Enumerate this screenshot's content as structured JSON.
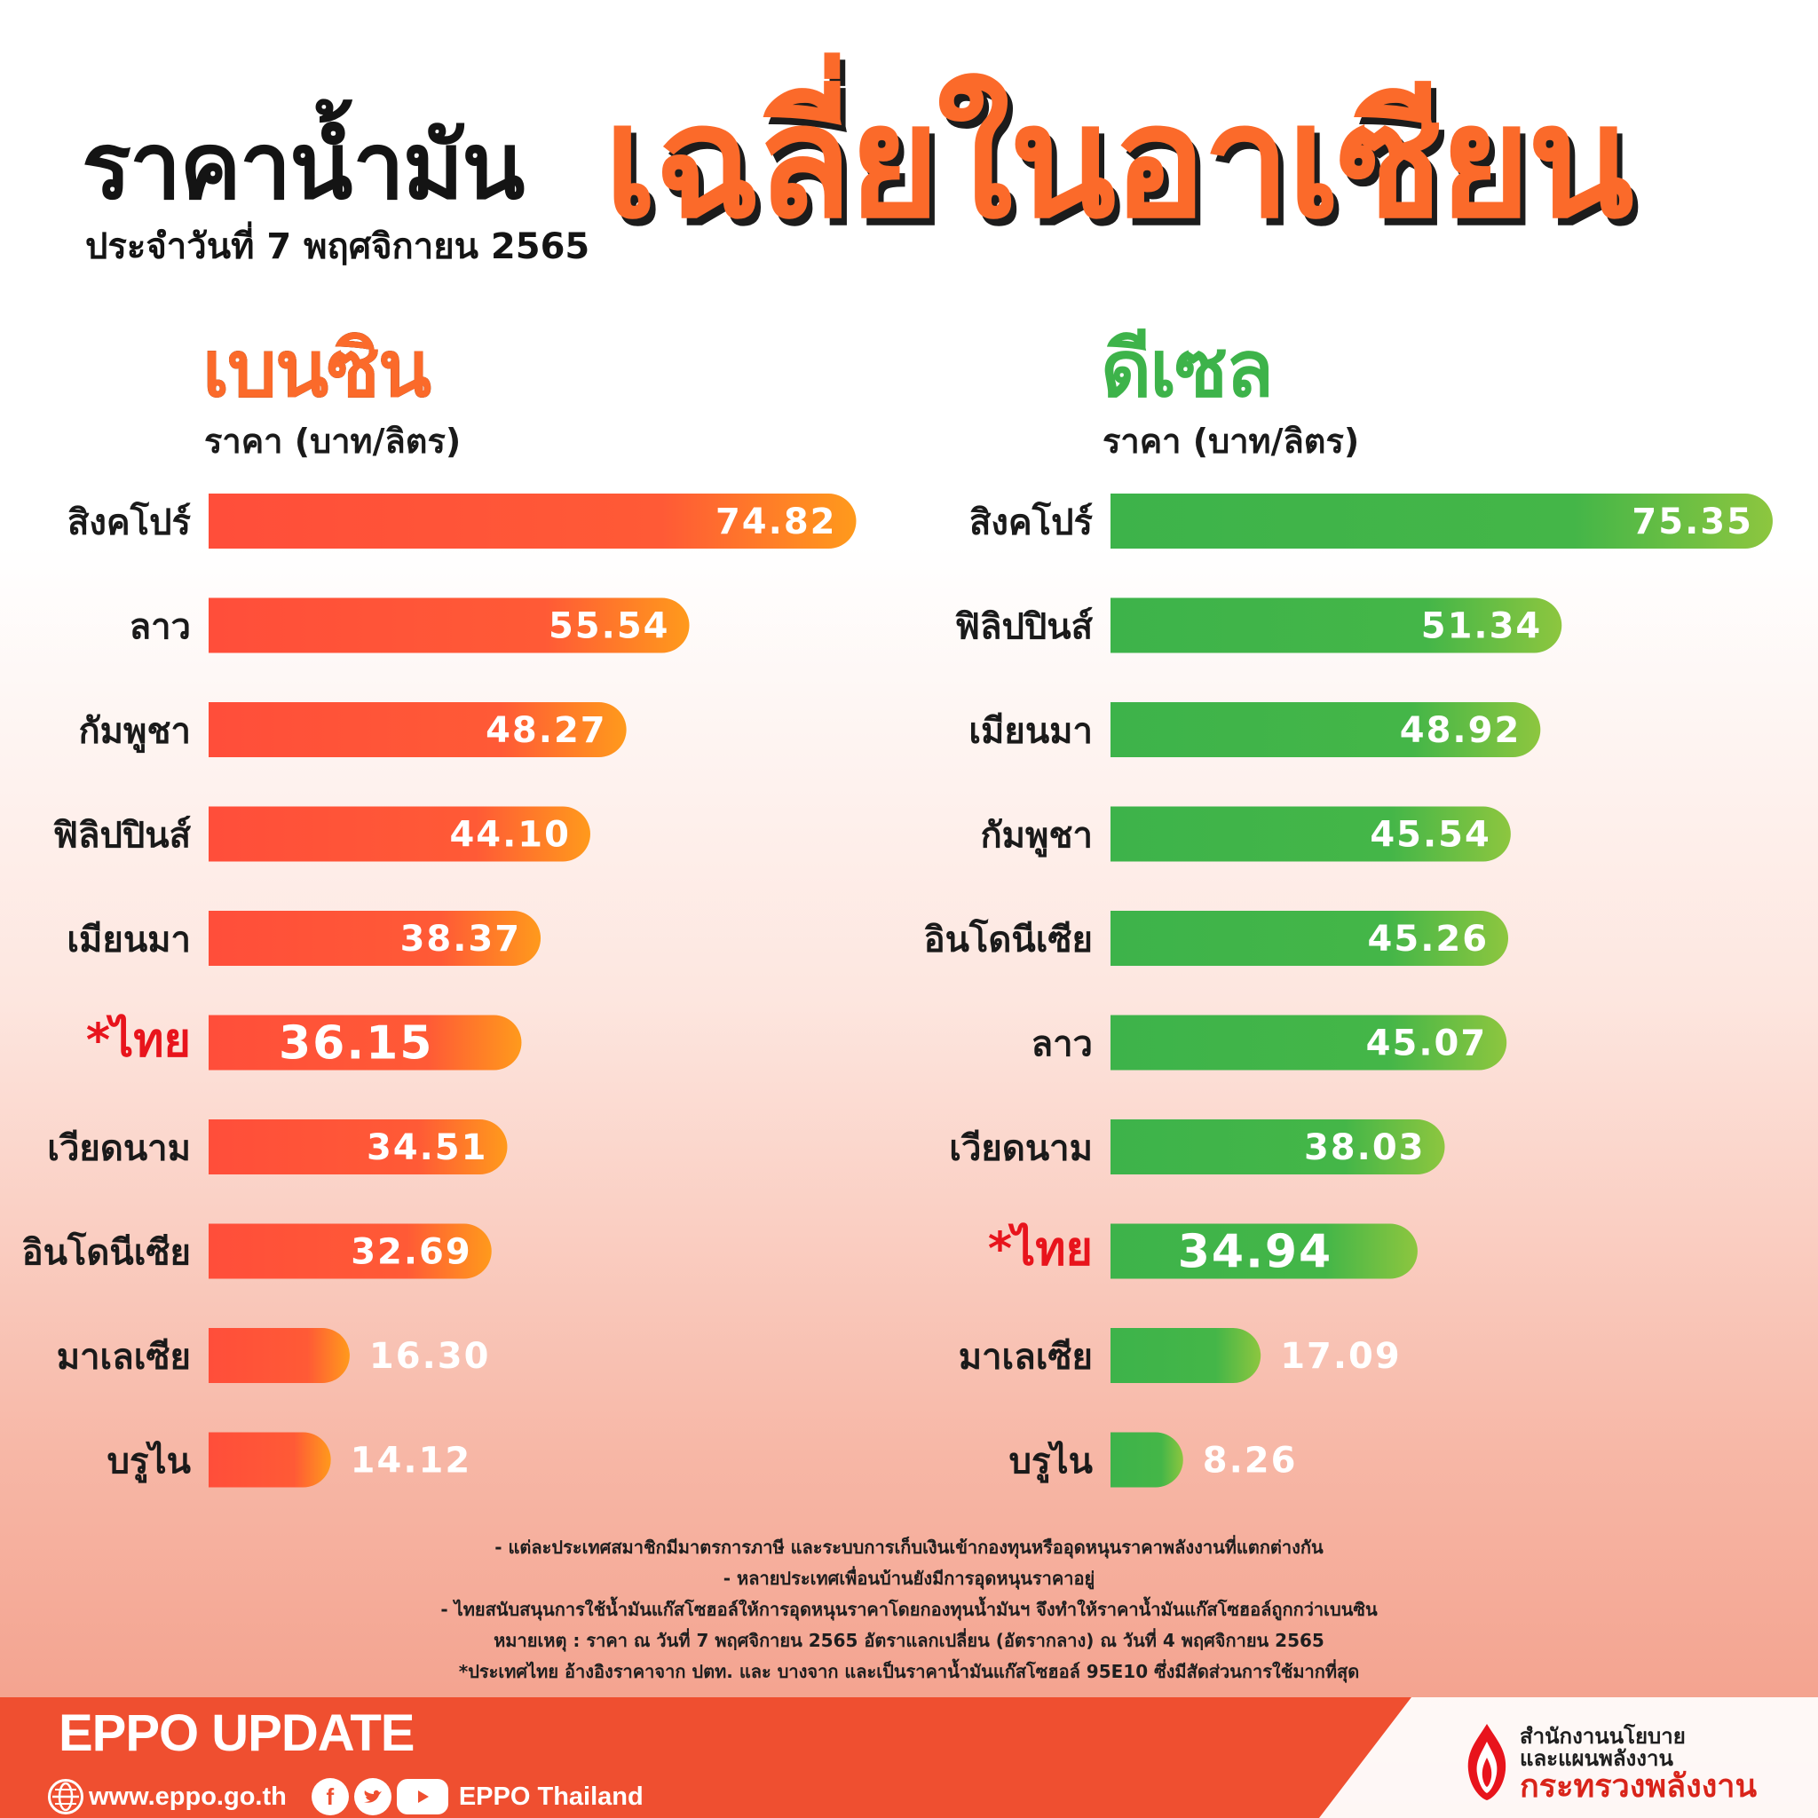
{
  "header": {
    "title_left": "ราคาน้ำมัน",
    "title_big": "เฉลี่ยในอาเซียน",
    "date": "ประจำวันที่ 7 พฤศจิกายน  2565"
  },
  "colors": {
    "gasoline_start": "#ff4e3a",
    "gasoline_end": "#ff9a1c",
    "diesel_start": "#3db34a",
    "diesel_end": "#8dc63f",
    "highlight_red": "#e8141c",
    "footer": "#ef4f30"
  },
  "chart_data": [
    {
      "type": "bar",
      "orientation": "horizontal",
      "title": "เบนซิน",
      "ylabel": "ราคา (บาท/ลิตร)",
      "categories": [
        "สิงคโปร์",
        "ลาว",
        "กัมพูชา",
        "ฟิลิปปินส์",
        "เมียนมา",
        "*ไทย",
        "เวียดนาม",
        "อินโดนีเซีย",
        "มาเลเซีย",
        "บรูไน"
      ],
      "values": [
        74.82,
        55.54,
        48.27,
        44.1,
        38.37,
        36.15,
        34.51,
        32.69,
        16.3,
        14.12
      ],
      "value_labels": [
        "74.82",
        "55.54",
        "48.27",
        "44.10",
        "38.37",
        "36.15",
        "34.51",
        "32.69",
        "16.30",
        "14.12"
      ],
      "highlight": "*ไทย"
    },
    {
      "type": "bar",
      "orientation": "horizontal",
      "title": "ดีเซล",
      "ylabel": "ราคา (บาท/ลิตร)",
      "categories": [
        "สิงคโปร์",
        "ฟิลิปปินส์",
        "เมียนมา",
        "กัมพูชา",
        "อินโดนีเซีย",
        "ลาว",
        "เวียดนาม",
        "*ไทย",
        "มาเลเซีย",
        "บรูไน"
      ],
      "values": [
        75.35,
        51.34,
        48.92,
        45.54,
        45.26,
        45.07,
        38.03,
        34.94,
        17.09,
        8.26
      ],
      "value_labels": [
        "75.35",
        "51.34",
        "48.92",
        "45.54",
        "45.26",
        "45.07",
        "38.03",
        "34.94",
        "17.09",
        "8.26"
      ],
      "highlight": "*ไทย"
    }
  ],
  "notes": [
    "- แต่ละประเทศสมาชิกมีมาตรการภาษี และระบบการเก็บเงินเข้ากองทุนหรืออุดหนุนราคาพลังงานที่แตกต่างกัน",
    "- หลายประเทศเพื่อนบ้านยังมีการอุดหนุนราคาอยู่",
    "- ไทยสนับสนุนการใช้น้ำมันแก๊สโซฮอล์ให้การอุดหนุนราคาโดยกองทุนน้ำมันฯ จึงทำให้ราคาน้ำมันแก๊สโซฮอล์ถูกกว่าเบนซิน",
    "หมายเหตุ :  ราคา ณ วันที่ 7 พฤศจิกายน 2565 อัตราแลกเปลี่ยน (อัตรากลาง) ณ วันที่ 4 พฤศจิกายน 2565",
    "*ประเทศไทย อ้างอิงราคาจาก ปตท. และ บางจาก และเป็นราคาน้ำมันแก๊สโซฮอล์ 95E10 ซึ่งมีสัดส่วนการใช้มากที่สุด"
  ],
  "footer": {
    "brand": "EPPO UPDATE",
    "website": "www.eppo.go.th",
    "social_name": "EPPO Thailand",
    "org_line1": "สำนักงานนโยบาย",
    "org_line2": "และแผนพลังงาน",
    "org_line3": "กระทรวงพลังงาน",
    "icons": [
      "globe-icon",
      "facebook-icon",
      "twitter-icon",
      "youtube-icon",
      "eppo-flame-logo"
    ]
  }
}
